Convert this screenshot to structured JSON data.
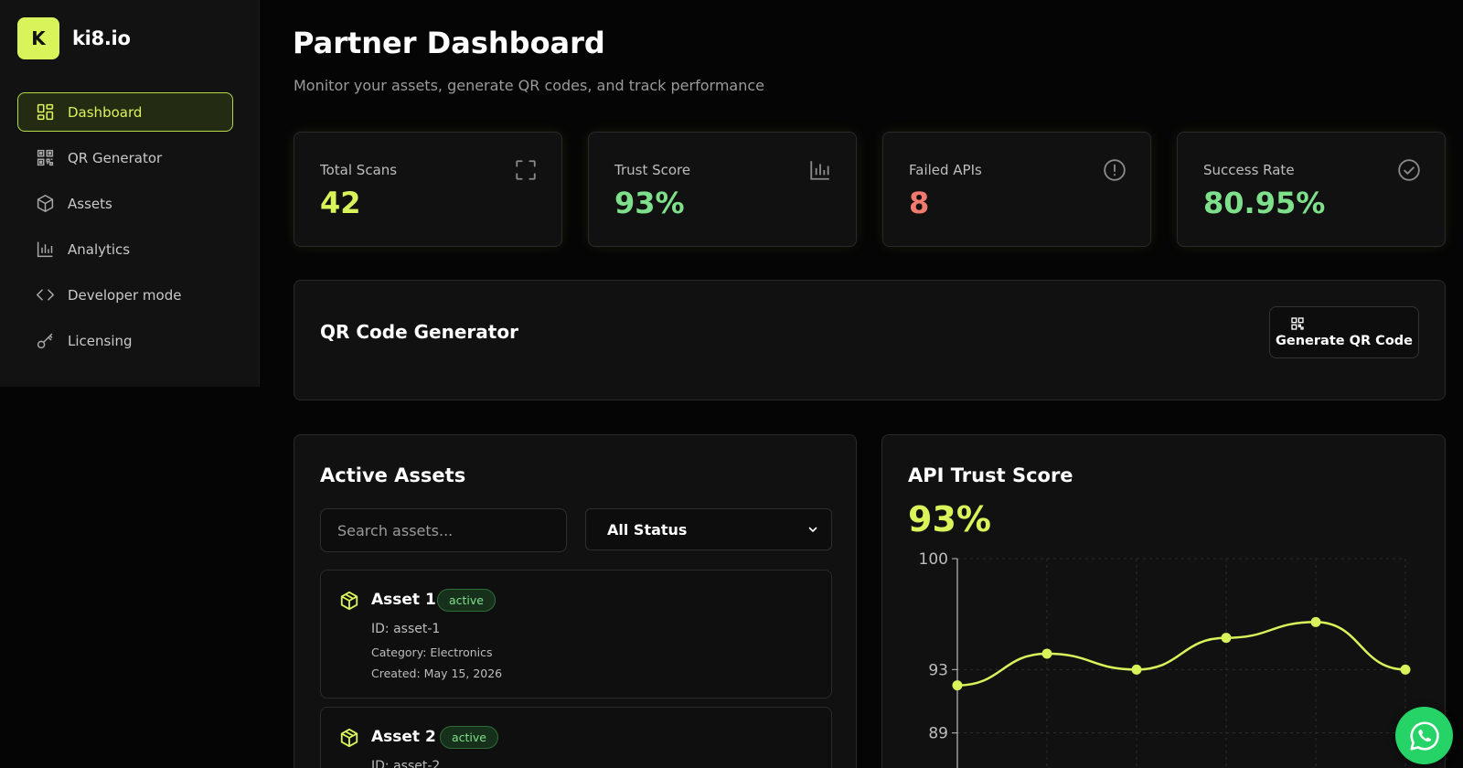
{
  "brand": {
    "logo_letter": "K",
    "name": "ki8.io"
  },
  "sidebar": {
    "items": [
      {
        "label": "Dashboard",
        "icon": "dashboard-grid-icon",
        "active": true
      },
      {
        "label": "QR Generator",
        "icon": "qr-code-icon",
        "active": false
      },
      {
        "label": "Assets",
        "icon": "cube-icon",
        "active": false
      },
      {
        "label": "Analytics",
        "icon": "bar-chart-icon",
        "active": false
      },
      {
        "label": "Developer mode",
        "icon": "code-brackets-icon",
        "active": false
      },
      {
        "label": "Licensing",
        "icon": "key-icon",
        "active": false
      }
    ]
  },
  "header": {
    "title": "Partner Dashboard",
    "subtitle": "Monitor your assets, generate QR codes, and track performance"
  },
  "stats": [
    {
      "label": "Total Scans",
      "value": "42",
      "icon": "scan-frame-icon",
      "color": "#d8f45a"
    },
    {
      "label": "Trust Score",
      "value": "93%",
      "icon": "bar-chart-icon",
      "color": "#7fe08b"
    },
    {
      "label": "Failed APIs",
      "value": "8",
      "icon": "alert-circle-icon",
      "color": "#f07a6e"
    },
    {
      "label": "Success Rate",
      "value": "80.95%",
      "icon": "check-circle-icon",
      "color": "#7fe08b"
    }
  ],
  "qr_generator": {
    "title": "QR Code Generator",
    "button_label": "Generate QR Code"
  },
  "assets": {
    "title": "Active Assets",
    "search_placeholder": "Search assets...",
    "status_filter": "All Status",
    "items": [
      {
        "name": "Asset 1",
        "status": "active",
        "id": "ID: asset-1",
        "category": "Category: Electronics",
        "created": "Created: May 15, 2026"
      },
      {
        "name": "Asset 2",
        "status": "active",
        "id": "ID: asset-2",
        "category": "",
        "created": ""
      }
    ]
  },
  "trust_panel": {
    "title": "API Trust Score",
    "value": "93%"
  },
  "chart_data": {
    "type": "line",
    "title": "",
    "x": [
      1,
      2,
      3,
      4,
      5,
      6
    ],
    "y_ticks": [
      100,
      93,
      89
    ],
    "series": [
      {
        "values": [
          92,
          94,
          93,
          95,
          96,
          93
        ]
      }
    ],
    "ylim": [
      85,
      100
    ],
    "grid": true,
    "line_color": "#d8f45a"
  },
  "colors": {
    "accent": "#d8f45a",
    "success": "#7fe08b",
    "danger": "#f07a6e",
    "whatsapp": "#25d366"
  }
}
